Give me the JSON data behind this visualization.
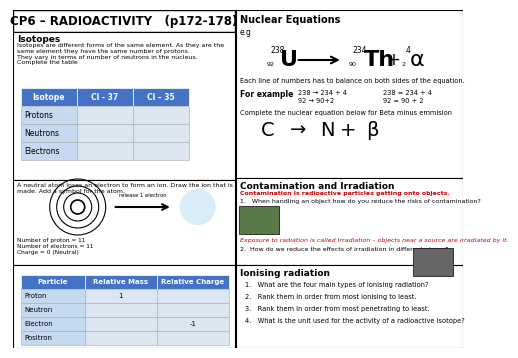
{
  "title": "CP6 – RADIOACTIVITY   (p172-178)",
  "header_bg": "#4472c4",
  "row_bg_blue": "#c5d9f1",
  "row_bg_light": "#dce6f1",
  "isotope_table_headers": [
    "Isotope",
    "Cl - 37",
    "Cl – 35"
  ],
  "isotope_table_rows": [
    "Protons",
    "Neutrons",
    "Electrons"
  ],
  "particle_table_headers": [
    "Particle",
    "Relative Mass",
    "Relative Charge"
  ],
  "particle_table_rows": [
    "Proton",
    "Neutron",
    "Electron",
    "Positron"
  ],
  "particle_mass": [
    "1",
    "",
    "",
    ""
  ],
  "particle_charge": [
    "",
    "",
    "-1",
    ""
  ],
  "isotope_text_title": "Isotopes",
  "isotope_text_body": "Isotopes are different forms of the same element. As they are the\nsame element they have the same number of protons.\nThey vary in terms of number of neutrons in the nucleus.\nComplete the table",
  "nuclear_title": "Nuclear Equations",
  "nuclear_eg": "e.g",
  "nuclear_line1": "Each line of numbers has to balance on both sides of the equation.",
  "nuclear_example_label": "For example",
  "nuclear_ex1a": "238 → 234 + 4",
  "nuclear_ex1b": "238 = 234 + 4",
  "nuclear_ex2a": "92 → 90+2",
  "nuclear_ex2b": "92 = 90 + 2",
  "nuclear_complete": "Complete the nuclear equation below for Beta minus emmision",
  "nuclear_beta_c": "C",
  "nuclear_beta_arr": "→",
  "nuclear_beta_n": "N",
  "nuclear_beta_plus": "+",
  "nuclear_beta_b": "β",
  "contam_title": "Contamination and Irradiation",
  "contam_red": "Contamination is radioactive particles getting onto objects.",
  "contam_q1": "1.   When handling an object how do you reduce the risks of contamination?",
  "irrad_text": "Exposure to radiation is called Irradiation – objects near a source are irradiated by it.",
  "irrad_q2": "2.  How do we reduce the effects of irradiation in different places?",
  "ionising_title": "Ionising radiation",
  "ionising_q1": "1.   What are the four main types of ionising radiation?",
  "ionising_q2": "2.   Rank them in order from most ionising to least.",
  "ionising_q3": "3.   Rank them in order from most penetrating to least.",
  "ionising_q4": "4.   What is the unit used for the activity of a radioactive isotope?",
  "atom_text": "A neutral atom loses an electron to form an ion. Draw the ion that is\nmade. Add a symbol for the atom.",
  "atom_label1": "Number of proton = 11",
  "atom_label2": "Number of electrons = 11",
  "atom_label3": "Charge = 0 (Neutral)",
  "release_text": "release 1 electron"
}
